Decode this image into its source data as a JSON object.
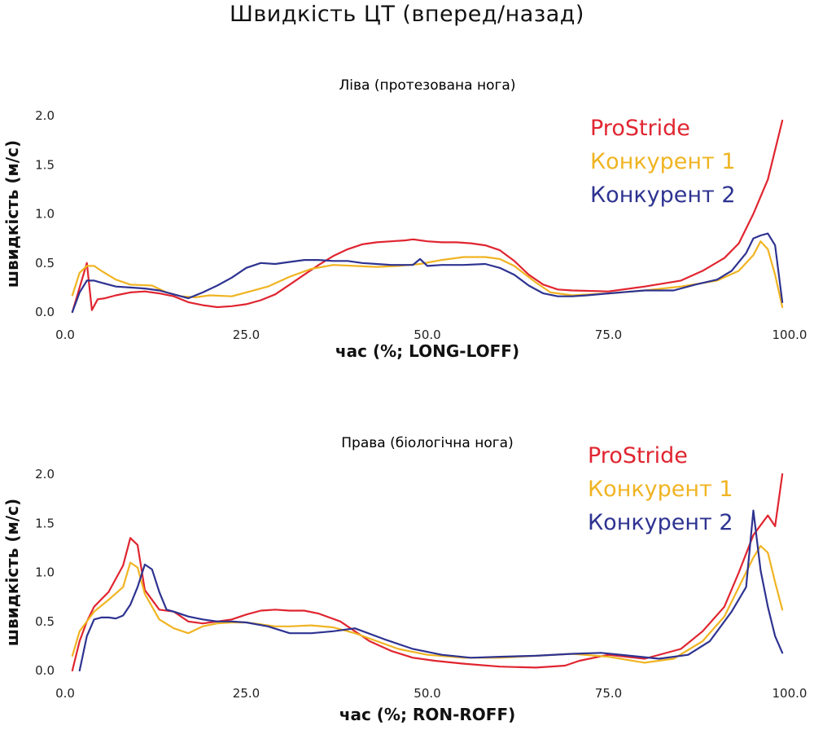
{
  "title": "Швидкість ЦТ (вперед/назад)",
  "colors": {
    "ProStride": "#e02530",
    "Konk1": "#f0b422",
    "Konk2": "#2e3391"
  },
  "chart_data": [
    {
      "type": "line",
      "title": "Ліва (протезована нога)",
      "xlabel": "час (%; LONG-LOFF)",
      "ylabel": "швидкість (м/с)",
      "xlim": [
        0,
        100
      ],
      "ylim": [
        0,
        2
      ],
      "xticks": [
        "0.0",
        "25.0",
        "50.0",
        "75.0",
        "100.0"
      ],
      "yticks": [
        "0.0",
        "0.5",
        "1.0",
        "1.5",
        "2.0"
      ],
      "grid": false,
      "legend_position": "top-right",
      "series": [
        {
          "name": "ProStride",
          "color": "#e02530",
          "x": [
            1,
            2,
            3,
            3.7,
            4.5,
            5.5,
            7,
            9,
            11,
            13,
            15,
            17,
            19,
            21,
            23,
            25,
            27,
            29,
            31,
            33,
            35,
            37,
            39,
            41,
            43,
            45,
            47,
            48,
            50,
            52,
            54,
            56,
            58,
            60,
            62,
            64,
            66,
            68,
            70,
            75,
            80,
            85,
            88,
            91,
            93,
            95,
            97,
            99
          ],
          "y": [
            0,
            0.25,
            0.5,
            0.02,
            0.13,
            0.14,
            0.17,
            0.2,
            0.21,
            0.19,
            0.16,
            0.1,
            0.07,
            0.05,
            0.06,
            0.08,
            0.12,
            0.18,
            0.28,
            0.38,
            0.48,
            0.57,
            0.64,
            0.69,
            0.71,
            0.72,
            0.73,
            0.74,
            0.72,
            0.71,
            0.71,
            0.7,
            0.68,
            0.63,
            0.52,
            0.38,
            0.28,
            0.23,
            0.22,
            0.21,
            0.26,
            0.32,
            0.42,
            0.55,
            0.7,
            1.0,
            1.35,
            1.95
          ]
        },
        {
          "name": "Конкурент 1",
          "color": "#f0b422",
          "x": [
            1,
            2,
            3,
            4,
            5,
            7,
            9,
            12,
            14,
            16,
            18,
            20,
            23,
            25,
            28,
            31,
            34,
            37,
            40,
            43,
            46,
            49,
            52,
            55,
            58,
            60,
            62,
            65,
            67,
            70,
            75,
            80,
            85,
            90,
            93,
            95,
            96,
            97,
            98,
            99
          ],
          "y": [
            0.17,
            0.4,
            0.47,
            0.47,
            0.42,
            0.33,
            0.28,
            0.27,
            0.2,
            0.16,
            0.15,
            0.17,
            0.16,
            0.2,
            0.26,
            0.36,
            0.44,
            0.48,
            0.47,
            0.46,
            0.47,
            0.49,
            0.53,
            0.56,
            0.56,
            0.54,
            0.47,
            0.3,
            0.2,
            0.17,
            0.19,
            0.22,
            0.26,
            0.32,
            0.42,
            0.58,
            0.72,
            0.64,
            0.38,
            0.05
          ]
        },
        {
          "name": "Конкурент 2",
          "color": "#2e3391",
          "x": [
            1,
            2,
            3,
            4,
            5,
            7,
            9,
            11,
            13,
            15,
            17,
            19,
            21,
            23,
            25,
            27,
            29,
            31,
            33,
            35,
            37,
            39,
            41,
            43,
            45,
            48,
            49,
            50,
            52,
            55,
            58,
            60,
            62,
            64,
            66,
            68,
            70,
            72,
            75,
            80,
            84,
            87,
            90,
            92,
            94,
            95,
            96,
            97,
            98,
            99
          ],
          "y": [
            0,
            0.2,
            0.32,
            0.32,
            0.3,
            0.26,
            0.25,
            0.24,
            0.22,
            0.18,
            0.14,
            0.2,
            0.27,
            0.35,
            0.45,
            0.5,
            0.49,
            0.51,
            0.53,
            0.53,
            0.52,
            0.52,
            0.5,
            0.49,
            0.48,
            0.48,
            0.54,
            0.47,
            0.48,
            0.48,
            0.49,
            0.45,
            0.38,
            0.27,
            0.19,
            0.16,
            0.16,
            0.17,
            0.19,
            0.22,
            0.22,
            0.28,
            0.33,
            0.42,
            0.6,
            0.75,
            0.78,
            0.8,
            0.68,
            0.1
          ]
        }
      ]
    },
    {
      "type": "line",
      "title": "Права (біологічна нога)",
      "xlabel": "час (%; RON-ROFF)",
      "ylabel": "швидкість (м/с)",
      "xlim": [
        0,
        100
      ],
      "ylim": [
        0,
        2
      ],
      "xticks": [
        "0.0",
        "25.0",
        "50.0",
        "75.0",
        "100.0"
      ],
      "yticks": [
        "0.0",
        "0.5",
        "1.0",
        "1.5",
        "2.0"
      ],
      "grid": false,
      "legend_position": "top-right",
      "series": [
        {
          "name": "ProStride",
          "color": "#e02530",
          "x": [
            1,
            2,
            3,
            4,
            6,
            8,
            9,
            10,
            11,
            13,
            15,
            17,
            19,
            21,
            23,
            25,
            27,
            29,
            31,
            33,
            35,
            38,
            40,
            42,
            45,
            48,
            51,
            55,
            60,
            65,
            69,
            71,
            75,
            80,
            85,
            88,
            91,
            93,
            95,
            97,
            98,
            99
          ],
          "y": [
            0,
            0.3,
            0.5,
            0.65,
            0.8,
            1.07,
            1.35,
            1.28,
            0.82,
            0.62,
            0.6,
            0.5,
            0.48,
            0.5,
            0.52,
            0.57,
            0.61,
            0.62,
            0.61,
            0.61,
            0.58,
            0.5,
            0.4,
            0.3,
            0.2,
            0.13,
            0.1,
            0.07,
            0.04,
            0.03,
            0.05,
            0.1,
            0.16,
            0.12,
            0.22,
            0.4,
            0.65,
            1.0,
            1.38,
            1.58,
            1.47,
            2.0
          ]
        },
        {
          "name": "Конкурент 1",
          "color": "#f0b422",
          "x": [
            1,
            2,
            4,
            6,
            8,
            9,
            10,
            11,
            13,
            15,
            17,
            19,
            21,
            23,
            25,
            27,
            29,
            31,
            34,
            37,
            40,
            43,
            46,
            50,
            55,
            60,
            65,
            70,
            75,
            80,
            84,
            88,
            91,
            93,
            95,
            96,
            97,
            98,
            99
          ],
          "y": [
            0.15,
            0.4,
            0.6,
            0.72,
            0.85,
            1.1,
            1.05,
            0.78,
            0.52,
            0.43,
            0.38,
            0.45,
            0.48,
            0.49,
            0.49,
            0.47,
            0.45,
            0.45,
            0.46,
            0.44,
            0.38,
            0.3,
            0.22,
            0.16,
            0.13,
            0.13,
            0.15,
            0.17,
            0.14,
            0.08,
            0.12,
            0.3,
            0.55,
            0.85,
            1.15,
            1.27,
            1.2,
            0.9,
            0.62
          ]
        },
        {
          "name": "Конкурент 2",
          "color": "#2e3391",
          "x": [
            2,
            3,
            4,
            5,
            6,
            7,
            8,
            9,
            10,
            11,
            12,
            13,
            14,
            15,
            17,
            19,
            21,
            23,
            25,
            28,
            31,
            34,
            37,
            40,
            44,
            48,
            52,
            56,
            60,
            65,
            70,
            74,
            78,
            82,
            86,
            89,
            92,
            94,
            95,
            96,
            97,
            98,
            99
          ],
          "y": [
            0,
            0.35,
            0.52,
            0.54,
            0.54,
            0.53,
            0.56,
            0.67,
            0.85,
            1.08,
            1.03,
            0.8,
            0.62,
            0.6,
            0.55,
            0.52,
            0.5,
            0.5,
            0.49,
            0.45,
            0.38,
            0.38,
            0.4,
            0.43,
            0.32,
            0.22,
            0.16,
            0.13,
            0.14,
            0.15,
            0.17,
            0.18,
            0.15,
            0.12,
            0.16,
            0.3,
            0.6,
            0.85,
            1.63,
            1.02,
            0.65,
            0.35,
            0.18
          ]
        }
      ]
    }
  ]
}
